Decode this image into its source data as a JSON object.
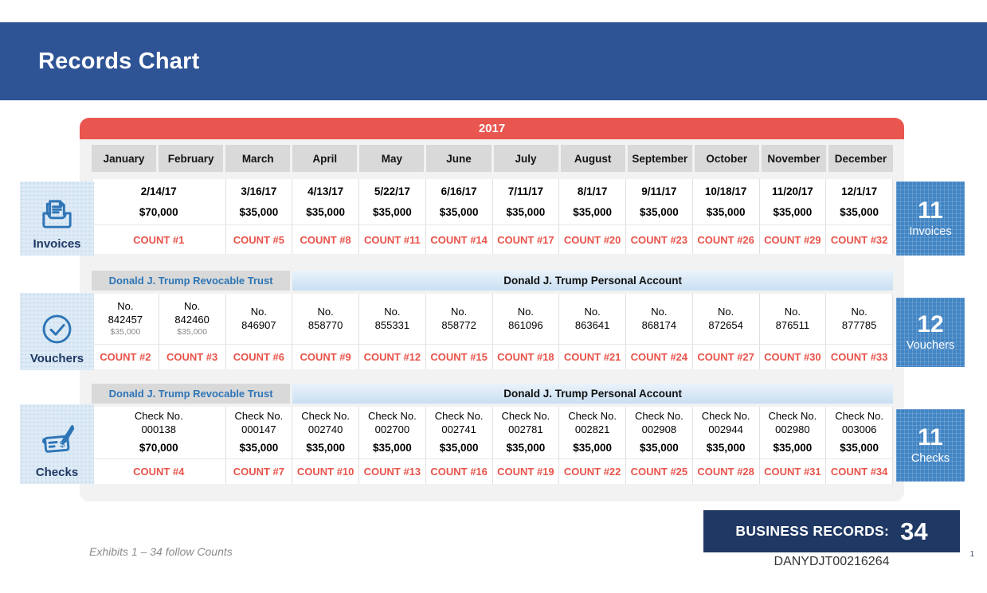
{
  "page": {
    "title": "Records Chart"
  },
  "chart_data": {
    "type": "table",
    "title": "Records Chart",
    "year": "2017",
    "columns": [
      "January",
      "February",
      "March",
      "April",
      "May",
      "June",
      "July",
      "August",
      "September",
      "October",
      "November",
      "December"
    ],
    "business_records_total": 34,
    "sections": [
      {
        "id": "invoices",
        "label": "Invoices",
        "icon": "documents-tray-icon",
        "badge": {
          "value": "11",
          "label": "Invoices"
        },
        "account_header": null,
        "columns": [
          {
            "span": 2,
            "lines": [
              [
                "2/14/17",
                "b"
              ],
              [
                "$70,000",
                "b"
              ]
            ],
            "count": "COUNT #1"
          },
          {
            "span": 1,
            "lines": [
              [
                "3/16/17",
                "b"
              ],
              [
                "$35,000",
                "b"
              ]
            ],
            "count": "COUNT #5"
          },
          {
            "span": 1,
            "lines": [
              [
                "4/13/17",
                "b"
              ],
              [
                "$35,000",
                "b"
              ]
            ],
            "count": "COUNT #8"
          },
          {
            "span": 1,
            "lines": [
              [
                "5/22/17",
                "b"
              ],
              [
                "$35,000",
                "b"
              ]
            ],
            "count": "COUNT #11"
          },
          {
            "span": 1,
            "lines": [
              [
                "6/16/17",
                "b"
              ],
              [
                "$35,000",
                "b"
              ]
            ],
            "count": "COUNT #14"
          },
          {
            "span": 1,
            "lines": [
              [
                "7/11/17",
                "b"
              ],
              [
                "$35,000",
                "b"
              ]
            ],
            "count": "COUNT #17"
          },
          {
            "span": 1,
            "lines": [
              [
                "8/1/17",
                "b"
              ],
              [
                "$35,000",
                "b"
              ]
            ],
            "count": "COUNT #20"
          },
          {
            "span": 1,
            "lines": [
              [
                "9/11/17",
                "b"
              ],
              [
                "$35,000",
                "b"
              ]
            ],
            "count": "COUNT #23"
          },
          {
            "span": 1,
            "lines": [
              [
                "10/18/17",
                "b"
              ],
              [
                "$35,000",
                "b"
              ]
            ],
            "count": "COUNT #26"
          },
          {
            "span": 1,
            "lines": [
              [
                "11/20/17",
                "b"
              ],
              [
                "$35,000",
                "b"
              ]
            ],
            "count": "COUNT #29"
          },
          {
            "span": 1,
            "lines": [
              [
                "12/1/17",
                "b"
              ],
              [
                "$35,000",
                "b"
              ]
            ],
            "count": "COUNT #32"
          }
        ]
      },
      {
        "id": "vouchers",
        "label": "Vouchers",
        "icon": "checkmark-circle-icon",
        "badge": {
          "value": "12",
          "label": "Vouchers"
        },
        "account_header": {
          "trust": {
            "text": "Donald J. Trump Revocable Trust",
            "span": 3
          },
          "personal": {
            "text": "Donald J. Trump Personal Account",
            "span": 9
          }
        },
        "columns": [
          {
            "span": 1,
            "lines": [
              [
                "No.",
                "r"
              ],
              [
                "842457",
                "r"
              ],
              [
                "$35,000",
                "s"
              ]
            ],
            "count": "COUNT #2"
          },
          {
            "span": 1,
            "lines": [
              [
                "No.",
                "r"
              ],
              [
                "842460",
                "r"
              ],
              [
                "$35,000",
                "s"
              ]
            ],
            "count": "COUNT #3"
          },
          {
            "span": 1,
            "lines": [
              [
                "No.",
                "r"
              ],
              [
                "846907",
                "r"
              ]
            ],
            "count": "COUNT #6"
          },
          {
            "span": 1,
            "lines": [
              [
                "No.",
                "r"
              ],
              [
                "858770",
                "r"
              ]
            ],
            "count": "COUNT #9"
          },
          {
            "span": 1,
            "lines": [
              [
                "No.",
                "r"
              ],
              [
                "855331",
                "r"
              ]
            ],
            "count": "COUNT #12"
          },
          {
            "span": 1,
            "lines": [
              [
                "No.",
                "r"
              ],
              [
                "858772",
                "r"
              ]
            ],
            "count": "COUNT #15"
          },
          {
            "span": 1,
            "lines": [
              [
                "No.",
                "r"
              ],
              [
                "861096",
                "r"
              ]
            ],
            "count": "COUNT #18"
          },
          {
            "span": 1,
            "lines": [
              [
                "No.",
                "r"
              ],
              [
                "863641",
                "r"
              ]
            ],
            "count": "COUNT #21"
          },
          {
            "span": 1,
            "lines": [
              [
                "No.",
                "r"
              ],
              [
                "868174",
                "r"
              ]
            ],
            "count": "COUNT #24"
          },
          {
            "span": 1,
            "lines": [
              [
                "No.",
                "r"
              ],
              [
                "872654",
                "r"
              ]
            ],
            "count": "COUNT #27"
          },
          {
            "span": 1,
            "lines": [
              [
                "No.",
                "r"
              ],
              [
                "876511",
                "r"
              ]
            ],
            "count": "COUNT #30"
          },
          {
            "span": 1,
            "lines": [
              [
                "No.",
                "r"
              ],
              [
                "877785",
                "r"
              ]
            ],
            "count": "COUNT #33"
          }
        ]
      },
      {
        "id": "checks",
        "label": "Checks",
        "icon": "signed-check-pen-icon",
        "badge": {
          "value": "11",
          "label": "Checks"
        },
        "account_header": {
          "trust": {
            "text": "Donald J. Trump Revocable Trust",
            "span": 3
          },
          "personal": {
            "text": "Donald J. Trump Personal Account",
            "span": 9
          }
        },
        "columns": [
          {
            "span": 2,
            "lines": [
              [
                "Check No.",
                "r"
              ],
              [
                "000138",
                "r"
              ],
              [
                "$70,000",
                "b"
              ]
            ],
            "count": "COUNT #4"
          },
          {
            "span": 1,
            "lines": [
              [
                "Check No.",
                "r"
              ],
              [
                "000147",
                "r"
              ],
              [
                "$35,000",
                "b"
              ]
            ],
            "count": "COUNT #7"
          },
          {
            "span": 1,
            "lines": [
              [
                "Check No.",
                "r"
              ],
              [
                "002740",
                "r"
              ],
              [
                "$35,000",
                "b"
              ]
            ],
            "count": "COUNT #10"
          },
          {
            "span": 1,
            "lines": [
              [
                "Check No.",
                "r"
              ],
              [
                "002700",
                "r"
              ],
              [
                "$35,000",
                "b"
              ]
            ],
            "count": "COUNT #13"
          },
          {
            "span": 1,
            "lines": [
              [
                "Check No.",
                "r"
              ],
              [
                "002741",
                "r"
              ],
              [
                "$35,000",
                "b"
              ]
            ],
            "count": "COUNT #16"
          },
          {
            "span": 1,
            "lines": [
              [
                "Check No.",
                "r"
              ],
              [
                "002781",
                "r"
              ],
              [
                "$35,000",
                "b"
              ]
            ],
            "count": "COUNT #19"
          },
          {
            "span": 1,
            "lines": [
              [
                "Check No.",
                "r"
              ],
              [
                "002821",
                "r"
              ],
              [
                "$35,000",
                "b"
              ]
            ],
            "count": "COUNT #22"
          },
          {
            "span": 1,
            "lines": [
              [
                "Check No.",
                "r"
              ],
              [
                "002908",
                "r"
              ],
              [
                "$35,000",
                "b"
              ]
            ],
            "count": "COUNT #25"
          },
          {
            "span": 1,
            "lines": [
              [
                "Check No.",
                "r"
              ],
              [
                "002944",
                "r"
              ],
              [
                "$35,000",
                "b"
              ]
            ],
            "count": "COUNT #28"
          },
          {
            "span": 1,
            "lines": [
              [
                "Check No.",
                "r"
              ],
              [
                "002980",
                "r"
              ],
              [
                "$35,000",
                "b"
              ]
            ],
            "count": "COUNT #31"
          },
          {
            "span": 1,
            "lines": [
              [
                "Check No.",
                "r"
              ],
              [
                "003006",
                "r"
              ],
              [
                "$35,000",
                "b"
              ]
            ],
            "count": "COUNT #34"
          }
        ]
      }
    ]
  },
  "footer": {
    "note": "Exhibits 1 – 34 follow Counts",
    "business_records_label": "BUSINESS RECORDS:",
    "business_records_total": "34",
    "bates_number": "DANYDJT00216264",
    "page_number": "1"
  },
  "colors": {
    "header_blue": "#2F5496",
    "year_red": "#E8564F",
    "count_red": "#E8534A",
    "badge_blue": "#4285C4",
    "tile_blue": "#DEEBF6",
    "navy_box": "#1F3864",
    "account_text_blue": "#2E75B6",
    "column_header_gray": "#D9D9D9"
  }
}
